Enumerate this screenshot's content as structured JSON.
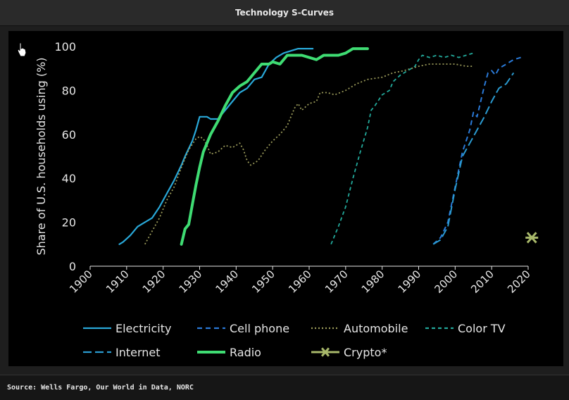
{
  "window": {
    "title": "Technology S-Curves"
  },
  "footer": {
    "source": "Source: Wells Fargo, Our World in Data, NORC"
  },
  "chart_data": {
    "type": "line",
    "title": "",
    "xlabel": "",
    "ylabel": "Share of U.S. households using (%)",
    "xlim": [
      1900,
      2020
    ],
    "ylim": [
      0,
      100
    ],
    "x_ticks": [
      1900,
      1910,
      1920,
      1930,
      1940,
      1950,
      1960,
      1970,
      1980,
      1990,
      2000,
      2010,
      2020
    ],
    "y_ticks": [
      0,
      20,
      40,
      60,
      80,
      100
    ],
    "grid": false,
    "legend_position": "bottom",
    "series": [
      {
        "name": "Electricity",
        "color": "#29a8d8",
        "dash": "solid",
        "width": 2.2,
        "points": [
          [
            1908,
            10
          ],
          [
            1909,
            11
          ],
          [
            1911,
            14
          ],
          [
            1913,
            18
          ],
          [
            1915,
            20
          ],
          [
            1917,
            22
          ],
          [
            1919,
            27
          ],
          [
            1921,
            33
          ],
          [
            1923,
            39
          ],
          [
            1925,
            46
          ],
          [
            1926,
            50
          ],
          [
            1928,
            57
          ],
          [
            1929,
            62
          ],
          [
            1930,
            68
          ],
          [
            1932,
            68
          ],
          [
            1933,
            67
          ],
          [
            1935,
            67
          ],
          [
            1937,
            71
          ],
          [
            1939,
            75
          ],
          [
            1941,
            79
          ],
          [
            1943,
            81
          ],
          [
            1945,
            85
          ],
          [
            1947,
            86
          ],
          [
            1949,
            92
          ],
          [
            1951,
            95
          ],
          [
            1953,
            97
          ],
          [
            1955,
            98
          ],
          [
            1957,
            99
          ],
          [
            1961,
            99
          ]
        ]
      },
      {
        "name": "Cell phone",
        "color": "#2a7ad8",
        "dash": "7,5",
        "width": 2,
        "points": [
          [
            1994,
            10
          ],
          [
            1996,
            13
          ],
          [
            1998,
            20
          ],
          [
            2000,
            36
          ],
          [
            2002,
            52
          ],
          [
            2004,
            62
          ],
          [
            2005,
            70
          ],
          [
            2006,
            68
          ],
          [
            2007,
            75
          ],
          [
            2008,
            82
          ],
          [
            2009,
            88
          ],
          [
            2010,
            89
          ],
          [
            2011,
            87
          ],
          [
            2012,
            90
          ],
          [
            2014,
            92
          ],
          [
            2016,
            94
          ],
          [
            2018,
            95
          ]
        ]
      },
      {
        "name": "Automobile",
        "color": "#9a9a5a",
        "dash": "2,3",
        "width": 1.8,
        "points": [
          [
            1915,
            10
          ],
          [
            1917,
            16
          ],
          [
            1919,
            22
          ],
          [
            1921,
            30
          ],
          [
            1923,
            36
          ],
          [
            1925,
            45
          ],
          [
            1927,
            53
          ],
          [
            1929,
            58
          ],
          [
            1930,
            59
          ],
          [
            1931,
            58
          ],
          [
            1932,
            55
          ],
          [
            1933,
            51
          ],
          [
            1935,
            52
          ],
          [
            1937,
            55
          ],
          [
            1939,
            54
          ],
          [
            1941,
            56
          ],
          [
            1942,
            53
          ],
          [
            1943,
            48
          ],
          [
            1944,
            46
          ],
          [
            1946,
            48
          ],
          [
            1948,
            53
          ],
          [
            1950,
            57
          ],
          [
            1952,
            60
          ],
          [
            1954,
            64
          ],
          [
            1956,
            72
          ],
          [
            1957,
            74
          ],
          [
            1958,
            71
          ],
          [
            1960,
            74
          ],
          [
            1962,
            75
          ],
          [
            1963,
            79
          ],
          [
            1965,
            79
          ],
          [
            1967,
            78
          ],
          [
            1970,
            80
          ],
          [
            1973,
            83
          ],
          [
            1976,
            85
          ],
          [
            1980,
            86
          ],
          [
            1983,
            88
          ],
          [
            1986,
            89
          ],
          [
            1990,
            91
          ],
          [
            1993,
            92
          ],
          [
            1996,
            92
          ],
          [
            2000,
            92
          ],
          [
            2003,
            91
          ],
          [
            2005,
            91
          ]
        ]
      },
      {
        "name": "Color TV",
        "color": "#22a89a",
        "dash": "5,4",
        "width": 1.8,
        "points": [
          [
            1966,
            10
          ],
          [
            1968,
            18
          ],
          [
            1970,
            27
          ],
          [
            1972,
            40
          ],
          [
            1974,
            52
          ],
          [
            1976,
            63
          ],
          [
            1977,
            71
          ],
          [
            1978,
            73
          ],
          [
            1980,
            78
          ],
          [
            1982,
            80
          ],
          [
            1983,
            84
          ],
          [
            1985,
            87
          ],
          [
            1987,
            89
          ],
          [
            1989,
            91
          ],
          [
            1990,
            94
          ],
          [
            1991,
            96
          ],
          [
            1993,
            95
          ],
          [
            1995,
            96
          ],
          [
            1997,
            95
          ],
          [
            1999,
            96
          ],
          [
            2001,
            95
          ],
          [
            2003,
            96
          ],
          [
            2005,
            97
          ]
        ]
      },
      {
        "name": "Internet",
        "color": "#2a9ad0",
        "dash": "12,5",
        "width": 2,
        "points": [
          [
            1994,
            10
          ],
          [
            1996,
            12
          ],
          [
            1998,
            18
          ],
          [
            2000,
            35
          ],
          [
            2002,
            50
          ],
          [
            2004,
            56
          ],
          [
            2006,
            62
          ],
          [
            2008,
            68
          ],
          [
            2010,
            75
          ],
          [
            2012,
            81
          ],
          [
            2014,
            83
          ],
          [
            2016,
            88
          ]
        ]
      },
      {
        "name": "Radio",
        "color": "#3fdc73",
        "dash": "solid",
        "width": 4,
        "points": [
          [
            1925,
            10
          ],
          [
            1926,
            17
          ],
          [
            1927,
            19
          ],
          [
            1928,
            28
          ],
          [
            1929,
            37
          ],
          [
            1930,
            45
          ],
          [
            1931,
            52
          ],
          [
            1933,
            60
          ],
          [
            1935,
            66
          ],
          [
            1937,
            73
          ],
          [
            1939,
            79
          ],
          [
            1941,
            82
          ],
          [
            1943,
            84
          ],
          [
            1945,
            88
          ],
          [
            1947,
            92
          ],
          [
            1949,
            92
          ],
          [
            1950,
            93
          ],
          [
            1952,
            92
          ],
          [
            1954,
            96
          ],
          [
            1956,
            96
          ],
          [
            1958,
            96
          ],
          [
            1960,
            95
          ],
          [
            1962,
            94
          ],
          [
            1964,
            96
          ],
          [
            1966,
            96
          ],
          [
            1968,
            96
          ],
          [
            1970,
            97
          ],
          [
            1972,
            99
          ],
          [
            1976,
            99
          ]
        ]
      },
      {
        "name": "Crypto*",
        "color": "#a8b86a",
        "type": "marker",
        "points": [
          [
            2021,
            13
          ]
        ]
      }
    ]
  }
}
